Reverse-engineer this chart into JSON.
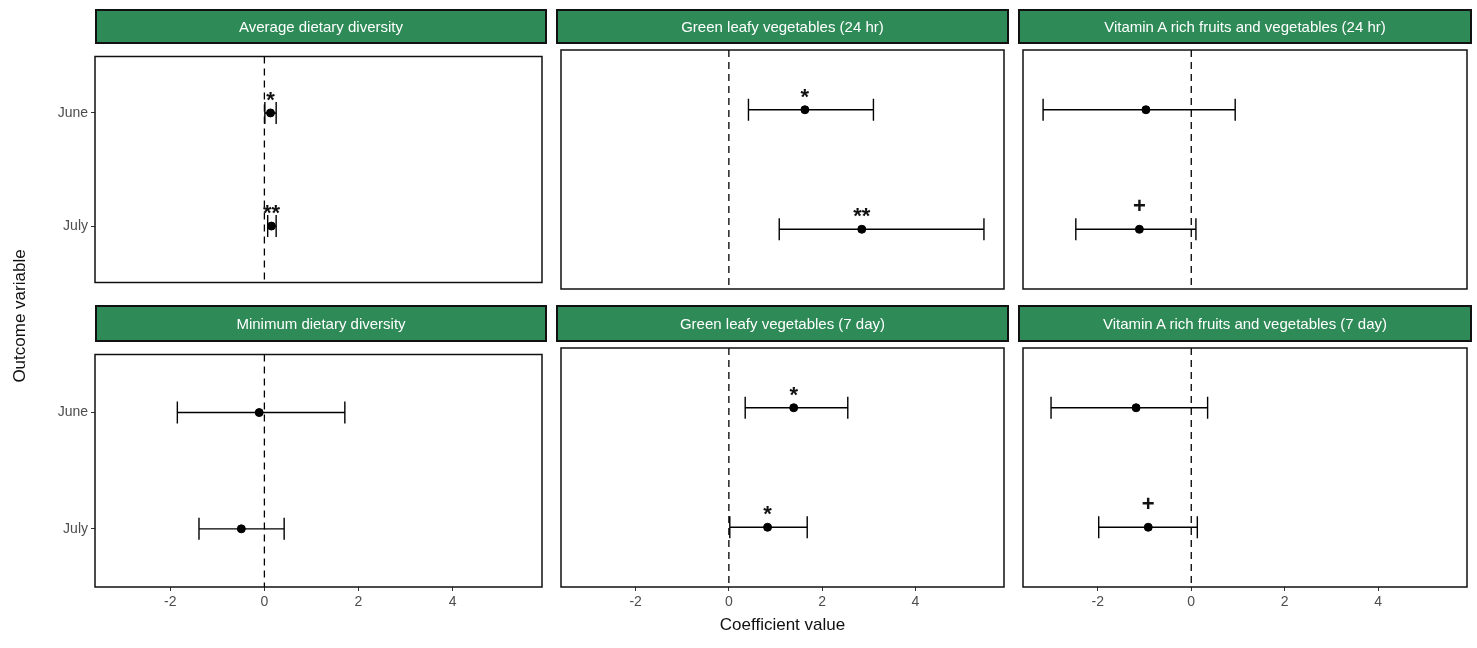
{
  "chart_data": [
    {
      "type": "scatter",
      "title": "Average dietary diversity",
      "ylabel": "Outcome variable",
      "orientation": "horizontal",
      "categories": [
        "June",
        "July"
      ],
      "values": [
        0.13,
        0.15
      ],
      "errors": [
        [
          0.01,
          0.25
        ],
        [
          0.07,
          0.25
        ]
      ],
      "color": "#000000",
      "marker": "circle",
      "xlim": [
        -3.6,
        5.9
      ],
      "xticks": [
        -2,
        0,
        2,
        4
      ],
      "tick_labels": "y",
      "ref_lines": [
        {
          "axis": "x",
          "value": 0,
          "line_style": "dashed",
          "color": "#000000"
        }
      ],
      "annotations": [
        {
          "text": "*",
          "x": 0.13,
          "y": "June"
        },
        {
          "text": "**",
          "x": 0.15,
          "y": "July"
        }
      ]
    },
    {
      "type": "scatter",
      "title": "Green leafy vegetables (24 hr)",
      "orientation": "horizontal",
      "categories": [
        "June",
        "July"
      ],
      "values": [
        1.63,
        2.85
      ],
      "errors": [
        [
          0.42,
          3.1
        ],
        [
          1.08,
          5.47
        ]
      ],
      "color": "#000000",
      "marker": "circle",
      "xlim": [
        -3.6,
        5.9
      ],
      "xticks": [
        -2,
        0,
        2,
        4
      ],
      "tick_labels": false,
      "ref_lines": [
        {
          "axis": "x",
          "value": 0,
          "line_style": "dashed",
          "color": "#000000"
        }
      ],
      "annotations": [
        {
          "text": "*",
          "x": 1.63,
          "y": "June"
        },
        {
          "text": "**",
          "x": 2.85,
          "y": "July"
        }
      ]
    },
    {
      "type": "scatter",
      "title": "Vitamin A rich fruits and vegetables (24 hr)",
      "orientation": "horizontal",
      "categories": [
        "June",
        "July"
      ],
      "values": [
        -0.97,
        -1.11
      ],
      "errors": [
        [
          -3.17,
          0.94
        ],
        [
          -2.47,
          0.1
        ]
      ],
      "color": "#000000",
      "marker": "circle",
      "xlim": [
        -3.6,
        5.9
      ],
      "xticks": [
        -2,
        0,
        2,
        4
      ],
      "tick_labels": false,
      "ref_lines": [
        {
          "axis": "x",
          "value": 0,
          "line_style": "dashed",
          "color": "#000000"
        }
      ],
      "annotations": [
        {
          "text": "+",
          "x": -1.11,
          "y": "July"
        }
      ]
    },
    {
      "type": "scatter",
      "title": "Minimum dietary diversity",
      "orientation": "horizontal",
      "categories": [
        "June",
        "July"
      ],
      "values": [
        -0.11,
        -0.49
      ],
      "errors": [
        [
          -1.85,
          1.71
        ],
        [
          -1.39,
          0.42
        ]
      ],
      "color": "#000000",
      "marker": "circle",
      "xlim": [
        -3.6,
        5.9
      ],
      "xticks": [
        -2,
        0,
        2,
        4
      ],
      "ref_lines": [
        {
          "axis": "x",
          "value": 0,
          "line_style": "dashed",
          "color": "#000000"
        }
      ]
    },
    {
      "type": "scatter",
      "title": "Green leafy vegetables (7 day)",
      "xlabel": "Coefficient value",
      "orientation": "horizontal",
      "categories": [
        "June",
        "July"
      ],
      "values": [
        1.39,
        0.83
      ],
      "errors": [
        [
          0.35,
          2.55
        ],
        [
          0.02,
          1.68
        ]
      ],
      "color": "#000000",
      "marker": "circle",
      "xlim": [
        -3.6,
        5.9
      ],
      "xticks": [
        -2,
        0,
        2,
        4
      ],
      "tick_labels": "x",
      "ref_lines": [
        {
          "axis": "x",
          "value": 0,
          "line_style": "dashed",
          "color": "#000000"
        }
      ],
      "annotations": [
        {
          "text": "*",
          "x": 1.39,
          "y": "June"
        },
        {
          "text": "*",
          "x": 0.83,
          "y": "July"
        }
      ]
    },
    {
      "type": "scatter",
      "title": "Vitamin A rich fruits and vegetables (7 day)",
      "orientation": "horizontal",
      "categories": [
        "June",
        "July"
      ],
      "values": [
        -1.18,
        -0.92
      ],
      "errors": [
        [
          -3.0,
          0.35
        ],
        [
          -1.98,
          0.13
        ]
      ],
      "color": "#000000",
      "marker": "circle",
      "xlim": [
        -3.6,
        5.9
      ],
      "xticks": [
        -2,
        0,
        2,
        4
      ],
      "tick_labels": "x",
      "ref_lines": [
        {
          "axis": "x",
          "value": 0,
          "line_style": "dashed",
          "color": "#000000"
        }
      ],
      "annotations": [
        {
          "text": "+",
          "x": -0.92,
          "y": "July"
        }
      ]
    }
  ]
}
